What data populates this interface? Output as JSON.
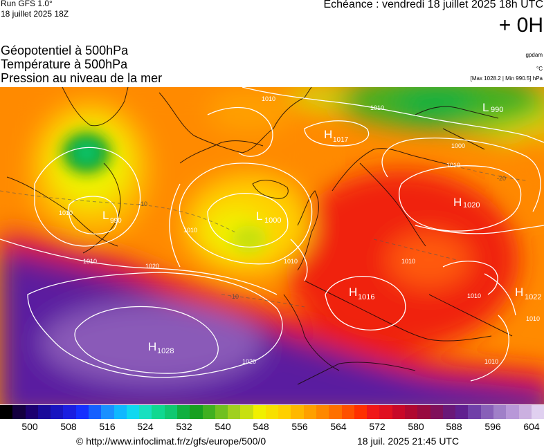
{
  "header": {
    "run_label": "Run GFS 1.0°",
    "run_date": "18 juillet 2025 18Z",
    "echeance": "Echéance : vendredi 18 juillet 2025 18h UTC",
    "lead_time": "+ 0H"
  },
  "titles": {
    "line1": "Géopotentiel à 500hPa",
    "line2": "Température à 500hPa",
    "line3": "Pression au niveau de la mer"
  },
  "units": {
    "geopotential": "gpdam",
    "temperature": "°C",
    "minmax": "[Max 1028.2 | Min 990.5] hPa"
  },
  "map": {
    "pressure_centers": [
      {
        "type": "H",
        "value": "1017"
      },
      {
        "type": "L",
        "value": "990"
      },
      {
        "type": "L",
        "value": "990"
      },
      {
        "type": "L",
        "value": "1000"
      },
      {
        "type": "H",
        "value": "1020"
      },
      {
        "type": "H",
        "value": "1016"
      },
      {
        "type": "H",
        "value": "1022"
      },
      {
        "type": "H",
        "value": "1028"
      }
    ],
    "isobar_labels": [
      "1010",
      "1010",
      "1000",
      "1010",
      "1010",
      "1010",
      "1010",
      "1020",
      "1010",
      "1010",
      "1010",
      "1010",
      "1010",
      "1020"
    ],
    "isotherm_labels": [
      "-10",
      "-10",
      "-20"
    ]
  },
  "colorbar": {
    "colors": [
      "#000000",
      "#140040",
      "#1c0070",
      "#1a0a9a",
      "#1814c0",
      "#1a1ee0",
      "#1530ff",
      "#1560ff",
      "#1a90ff",
      "#10b8ff",
      "#10d8f0",
      "#18e0c0",
      "#10d890",
      "#10c870",
      "#10b040",
      "#18a020",
      "#40b020",
      "#70c020",
      "#a0d020",
      "#c8e010",
      "#f0f000",
      "#f8e000",
      "#ffd000",
      "#ffb800",
      "#ffa000",
      "#ff8800",
      "#ff7000",
      "#ff5000",
      "#ff3000",
      "#f01818",
      "#e01020",
      "#c80828",
      "#b00830",
      "#980a40",
      "#80105a",
      "#6a1878",
      "#602090",
      "#7040a8",
      "#8860b8",
      "#a080c8",
      "#b898d8",
      "#cbb0e0",
      "#e0d0f0"
    ],
    "tick_labels": [
      "500",
      "508",
      "516",
      "524",
      "532",
      "540",
      "548",
      "556",
      "564",
      "572",
      "580",
      "588",
      "596",
      "604"
    ]
  },
  "footer": {
    "copyright": "© http://www.infoclimat.fr/z/gfs/europe/500/0",
    "timestamp": "18 juil. 2025 21:45 UTC"
  }
}
